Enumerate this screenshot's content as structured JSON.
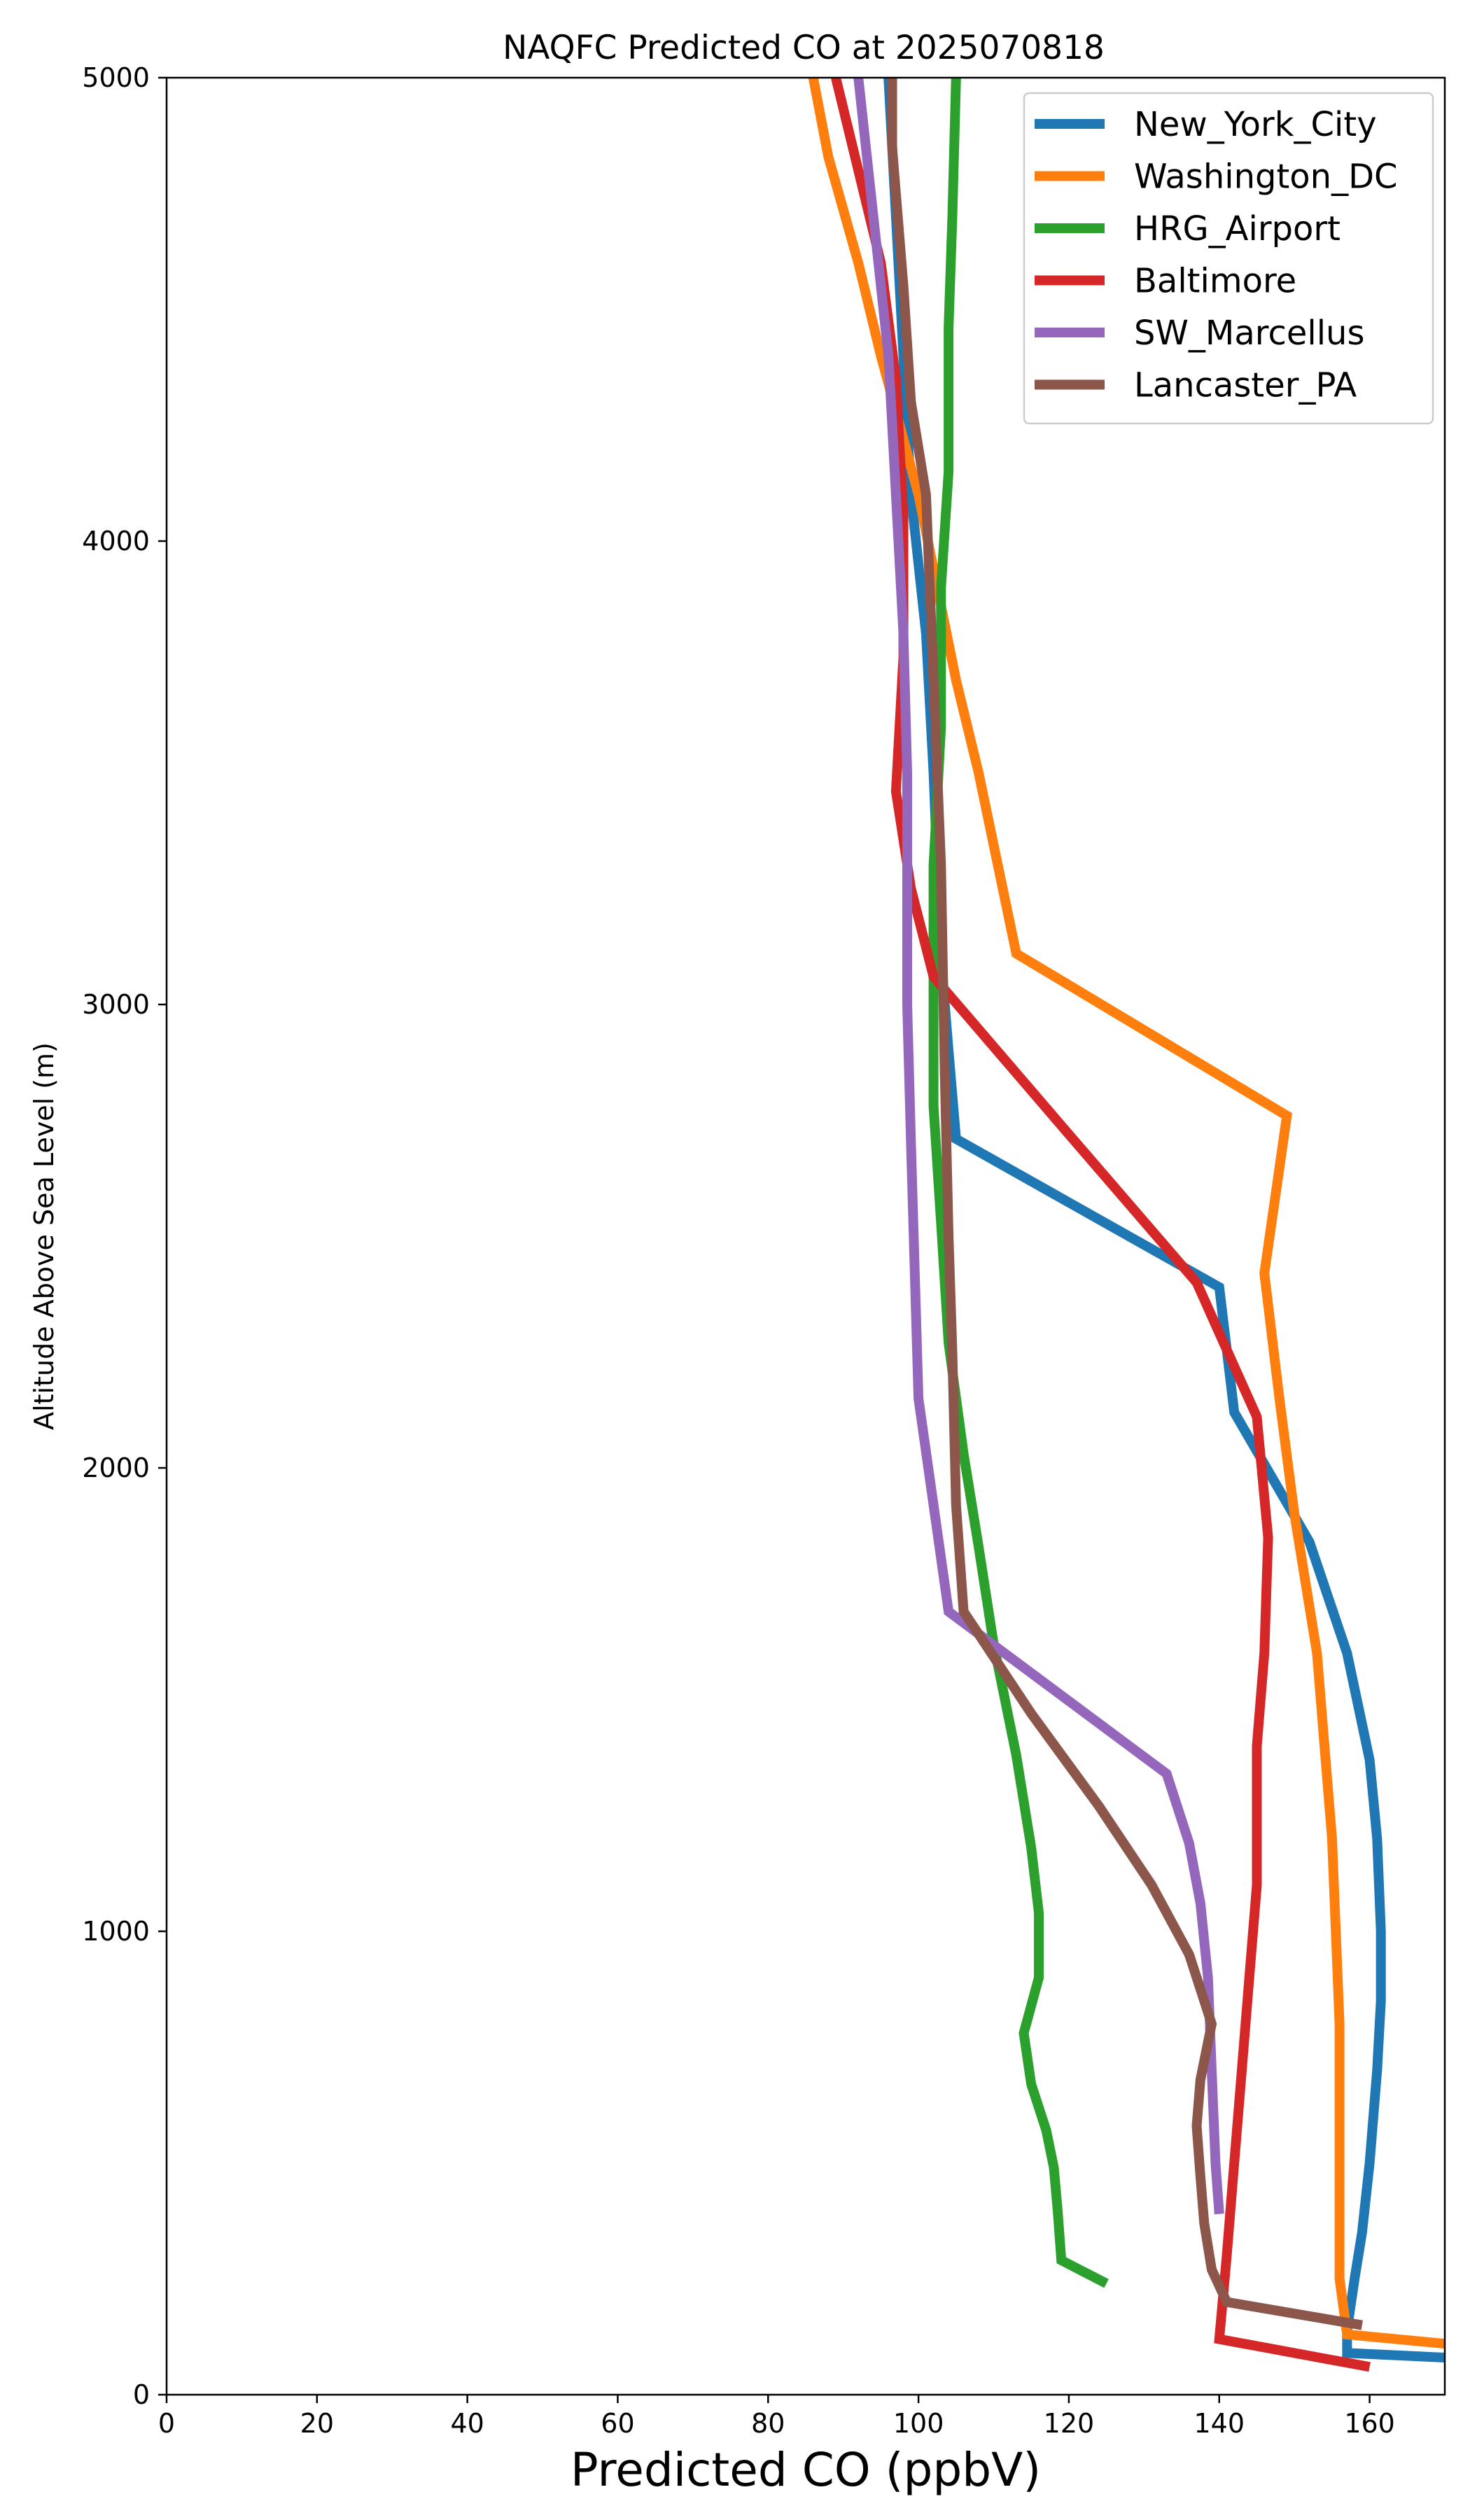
{
  "chart_data": {
    "type": "line",
    "title": "NAQFC Predicted CO at 2025070818",
    "xlabel": "Predicted CO (ppbV)",
    "ylabel": "Altitude Above Sea Level (m)",
    "xlim": [
      0,
      170
    ],
    "ylim": [
      0,
      5000
    ],
    "xticks": [
      0,
      20,
      40,
      60,
      80,
      100,
      120,
      140,
      160
    ],
    "yticks": [
      0,
      1000,
      2000,
      3000,
      4000,
      5000
    ],
    "grid": false,
    "legend_position": "top-right",
    "series": [
      {
        "name": "New_York_City",
        "color": "#1f77b4",
        "points": [
          [
            170,
            80
          ],
          [
            157,
            90
          ],
          [
            157,
            140
          ],
          [
            158,
            250
          ],
          [
            159,
            350
          ],
          [
            160,
            500
          ],
          [
            161,
            700
          ],
          [
            161.5,
            850
          ],
          [
            161.5,
            1000
          ],
          [
            161,
            1200
          ],
          [
            160,
            1370
          ],
          [
            157,
            1600
          ],
          [
            152,
            1840
          ],
          [
            142,
            2120
          ],
          [
            140,
            2390
          ],
          [
            105,
            2710
          ],
          [
            104,
            2900
          ],
          [
            103,
            3100
          ],
          [
            102,
            3500
          ],
          [
            101,
            3800
          ],
          [
            99,
            4100
          ],
          [
            98,
            4400
          ],
          [
            97,
            4700
          ],
          [
            96,
            5000
          ]
        ]
      },
      {
        "name": "Washington_DC",
        "color": "#ff7f0e",
        "points": [
          [
            170,
            110
          ],
          [
            157,
            130
          ],
          [
            156,
            250
          ],
          [
            156,
            400
          ],
          [
            156,
            600
          ],
          [
            156,
            800
          ],
          [
            155.5,
            1000
          ],
          [
            155,
            1200
          ],
          [
            154,
            1400
          ],
          [
            153,
            1600
          ],
          [
            150,
            1900
          ],
          [
            148,
            2150
          ],
          [
            146,
            2420
          ],
          [
            149,
            2760
          ],
          [
            113,
            3110
          ],
          [
            108,
            3500
          ],
          [
            105,
            3700
          ],
          [
            100,
            4100
          ],
          [
            95,
            4400
          ],
          [
            92,
            4600
          ],
          [
            88,
            4830
          ],
          [
            86,
            5000
          ]
        ]
      },
      {
        "name": "HRG_Airport",
        "color": "#2ca02c",
        "points": [
          [
            125,
            240
          ],
          [
            119,
            290
          ],
          [
            118.5,
            400
          ],
          [
            118,
            490
          ],
          [
            117,
            570
          ],
          [
            115,
            670
          ],
          [
            114,
            780
          ],
          [
            116,
            900
          ],
          [
            116,
            1040
          ],
          [
            115,
            1180
          ],
          [
            113,
            1380
          ],
          [
            110,
            1620
          ],
          [
            108,
            1830
          ],
          [
            106,
            2030
          ],
          [
            104,
            2270
          ],
          [
            103,
            2530
          ],
          [
            102,
            2780
          ],
          [
            102,
            3000
          ],
          [
            102,
            3300
          ],
          [
            103,
            3600
          ],
          [
            103,
            3900
          ],
          [
            104,
            4150
          ],
          [
            104,
            4460
          ],
          [
            104.5,
            4700
          ],
          [
            105,
            5000
          ]
        ]
      },
      {
        "name": "Baltimore",
        "color": "#d62728",
        "points": [
          [
            160,
            60
          ],
          [
            140,
            120
          ],
          [
            141,
            300
          ],
          [
            142,
            500
          ],
          [
            143,
            700
          ],
          [
            144,
            900
          ],
          [
            145,
            1100
          ],
          [
            145,
            1400
          ],
          [
            146,
            1600
          ],
          [
            146.5,
            1850
          ],
          [
            145,
            2110
          ],
          [
            137,
            2400
          ],
          [
            120,
            2720
          ],
          [
            102,
            3060
          ],
          [
            99,
            3250
          ],
          [
            97,
            3460
          ],
          [
            98,
            3750
          ],
          [
            98,
            4050
          ],
          [
            97,
            4350
          ],
          [
            95,
            4600
          ],
          [
            92,
            4800
          ],
          [
            89,
            5000
          ]
        ]
      },
      {
        "name": "SW_Marcellus",
        "color": "#9467bd",
        "points": [
          [
            140,
            390
          ],
          [
            139.5,
            500
          ],
          [
            139,
            700
          ],
          [
            138.5,
            900
          ],
          [
            137.5,
            1060
          ],
          [
            136,
            1190
          ],
          [
            133,
            1340
          ],
          [
            104,
            1690
          ],
          [
            100,
            2150
          ],
          [
            99,
            2700
          ],
          [
            98.5,
            3000
          ],
          [
            98.5,
            3500
          ],
          [
            98,
            3800
          ],
          [
            97,
            4100
          ],
          [
            96,
            4400
          ],
          [
            94,
            4700
          ],
          [
            92,
            5000
          ]
        ]
      },
      {
        "name": "Lancaster_PA",
        "color": "#8c564b",
        "points": [
          [
            159,
            150
          ],
          [
            141,
            200
          ],
          [
            139,
            270
          ],
          [
            138,
            370
          ],
          [
            137.5,
            470
          ],
          [
            137,
            580
          ],
          [
            137.5,
            680
          ],
          [
            139,
            800
          ],
          [
            136,
            950
          ],
          [
            131,
            1100
          ],
          [
            124,
            1270
          ],
          [
            115,
            1470
          ],
          [
            106,
            1690
          ],
          [
            105,
            1920
          ],
          [
            104.5,
            2250
          ],
          [
            104,
            2500
          ],
          [
            103.5,
            2850
          ],
          [
            103,
            3300
          ],
          [
            102,
            3700
          ],
          [
            101,
            4100
          ],
          [
            99,
            4300
          ],
          [
            98,
            4550
          ],
          [
            96.5,
            4850
          ],
          [
            96.5,
            5000
          ]
        ]
      }
    ]
  }
}
